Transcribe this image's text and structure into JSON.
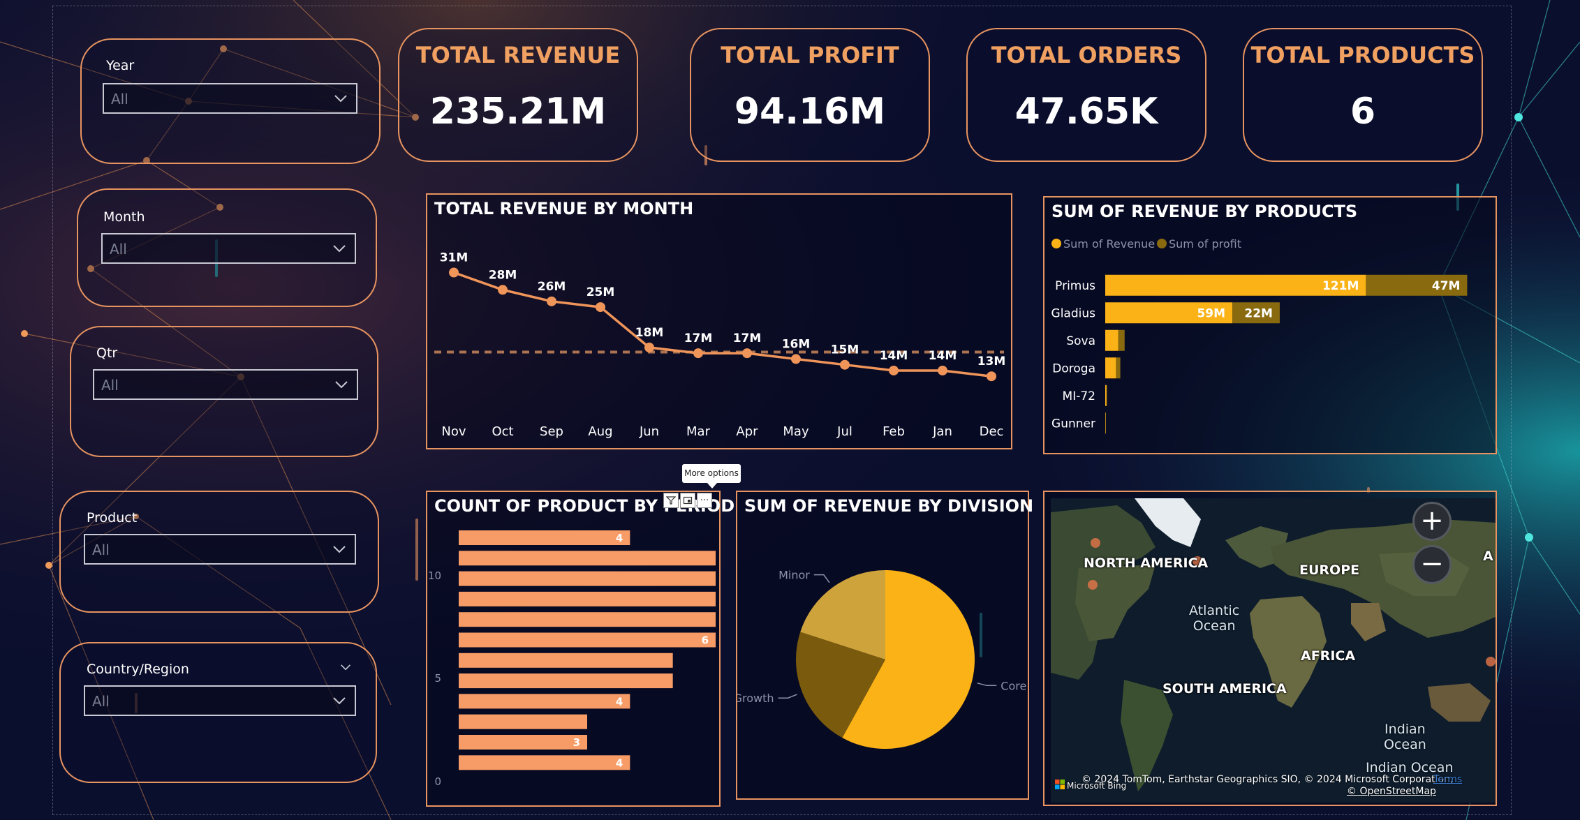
{
  "slicers": [
    {
      "label": "Year",
      "value": "All"
    },
    {
      "label": "Month",
      "value": "All"
    },
    {
      "label": "Qtr",
      "value": "All"
    },
    {
      "label": "Product",
      "value": "All"
    },
    {
      "label": "Country/Region",
      "value": "All"
    }
  ],
  "kpis": [
    {
      "title": "TOTAL REVENUE",
      "value": "235.21M"
    },
    {
      "title": "TOTAL PROFIT",
      "value": "94.16M"
    },
    {
      "title": "TOTAL ORDERS",
      "value": "47.65K"
    },
    {
      "title": "TOTAL PRODUCTS",
      "value": "6"
    }
  ],
  "tooltip": {
    "text": "More options"
  },
  "visual_header": {
    "more_glyph": "···"
  },
  "colors": {
    "accent_orange": "#e89460",
    "line_orange": "#f0955a",
    "bar_salmon": "#f79c66",
    "revenue_gold": "#fbb216",
    "profit_olive": "#8a6a0f",
    "pie_core": "#fbb216",
    "pie_growth": "#7a5a0c",
    "pie_minor": "#cfa33c"
  },
  "map": {
    "labels": [
      "NORTH AMERICA",
      "EUROPE",
      "AFRICA",
      "SOUTH AMERICA"
    ],
    "oceans": [
      "Atlantic\nOcean",
      "Indian\nOcean",
      "Indian Ocean"
    ],
    "partial_label": "A",
    "zoom_in": "+",
    "zoom_out": "−",
    "attribution": "© 2024 TomTom, Earthstar Geographics SIO, © 2024 Microsoft Corporation,",
    "terms": "Terms",
    "osm": "© OpenStreetMap",
    "bing": "Microsoft Bing"
  },
  "chart_data": [
    {
      "type": "line",
      "title": "TOTAL REVENUE BY MONTH",
      "categories": [
        "Nov",
        "Oct",
        "Sep",
        "Aug",
        "Jun",
        "Mar",
        "Apr",
        "May",
        "Jul",
        "Feb",
        "Jan",
        "Dec"
      ],
      "values": [
        31,
        28,
        26,
        25,
        18,
        17,
        17,
        16,
        15,
        14,
        14,
        13
      ],
      "data_labels": [
        "31M",
        "28M",
        "26M",
        "25M",
        "18M",
        "17M",
        "17M",
        "16M",
        "15M",
        "14M",
        "14M",
        "13M"
      ],
      "average_line": 17.2,
      "ylim": [
        10,
        33
      ]
    },
    {
      "type": "bar",
      "orientation": "horizontal",
      "title": "SUM OF REVENUE BY PRODUCTS",
      "legend": "top-left",
      "categories": [
        "Primus",
        "Gladius",
        "Sova",
        "Doroga",
        "MI-72",
        "Gunner"
      ],
      "series": [
        {
          "name": "Sum of Revenue",
          "values": [
            121,
            59,
            6,
            5,
            0.6,
            0.2
          ],
          "labels": [
            "121M",
            "59M",
            "",
            "",
            "",
            ""
          ]
        },
        {
          "name": "Sum of profit",
          "values": [
            47,
            22,
            3,
            2,
            0.2,
            0.1
          ],
          "labels": [
            "47M",
            "22M",
            "",
            "",
            "",
            ""
          ]
        }
      ],
      "xlim": [
        0,
        175
      ]
    },
    {
      "type": "bar",
      "orientation": "horizontal",
      "title": "COUNT OF PRODUCT BY PERIOD",
      "values": [
        4,
        6,
        6,
        6,
        6,
        6,
        5,
        5,
        4,
        3,
        3,
        4
      ],
      "labels": [
        "4",
        "",
        "",
        "",
        "",
        "6",
        "",
        "",
        "4",
        "",
        "3",
        "4"
      ],
      "ytick_labels": [
        "10",
        "5",
        "0"
      ],
      "xlim": [
        0,
        6
      ]
    },
    {
      "type": "pie",
      "title": "SUM OF REVENUE BY DIVISION",
      "categories": [
        "Core",
        "Growth",
        "Minor"
      ],
      "values": [
        58,
        22,
        20
      ]
    }
  ]
}
